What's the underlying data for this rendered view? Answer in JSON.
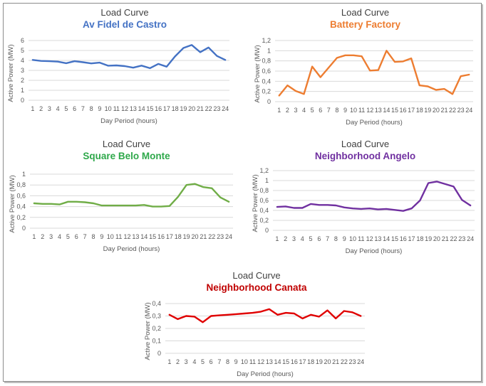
{
  "chart_data": [
    {
      "type": "line",
      "title": "Load Curve",
      "subtitle": "Av Fidel de Castro",
      "color": "#4472C4",
      "xlabel": "Day Period (hours)",
      "ylabel": "Active Power (MW)",
      "x": [
        1,
        2,
        3,
        4,
        5,
        6,
        7,
        8,
        9,
        10,
        11,
        12,
        13,
        14,
        15,
        16,
        17,
        18,
        19,
        20,
        21,
        22,
        23,
        24
      ],
      "ylim": [
        0,
        6
      ],
      "yticks": [
        "0",
        "1",
        "2",
        "3",
        "4",
        "5",
        "6"
      ],
      "grid": true,
      "series": [
        {
          "name": "Av Fidel de Castro",
          "values": [
            4.05,
            3.95,
            3.92,
            3.88,
            3.72,
            3.92,
            3.82,
            3.7,
            3.78,
            3.47,
            3.5,
            3.43,
            3.27,
            3.48,
            3.22,
            3.65,
            3.37,
            4.4,
            5.25,
            5.55,
            4.83,
            5.3,
            4.45,
            4.05
          ]
        }
      ]
    },
    {
      "type": "line",
      "title": "Load Curve",
      "subtitle": "Battery Factory",
      "color": "#ED7D31",
      "xlabel": "Day Period (hours)",
      "ylabel": "Active Power (MW)",
      "x": [
        1,
        2,
        3,
        4,
        5,
        6,
        7,
        8,
        9,
        10,
        11,
        12,
        13,
        14,
        15,
        16,
        17,
        18,
        19,
        20,
        21,
        22,
        23,
        24
      ],
      "ylim": [
        0,
        1.2
      ],
      "yticks": [
        "0",
        "0,2",
        "0,4",
        "0,6",
        "0,8",
        "1",
        "1,2"
      ],
      "grid": true,
      "series": [
        {
          "name": "Battery Factory",
          "values": [
            0.12,
            0.32,
            0.21,
            0.15,
            0.69,
            0.48,
            0.67,
            0.86,
            0.91,
            0.91,
            0.89,
            0.61,
            0.62,
            1.0,
            0.78,
            0.79,
            0.85,
            0.32,
            0.3,
            0.23,
            0.25,
            0.15,
            0.5,
            0.53
          ]
        }
      ]
    },
    {
      "type": "line",
      "title": "Load Curve",
      "subtitle": "Square Belo Monte",
      "color": "#70AD47",
      "subtitle_color": "#2EA84A",
      "xlabel": "Day Period (hours)",
      "ylabel": "Active Power (MW)",
      "x": [
        1,
        2,
        3,
        4,
        5,
        6,
        7,
        8,
        9,
        10,
        11,
        12,
        13,
        14,
        15,
        16,
        17,
        18,
        19,
        20,
        21,
        22,
        23,
        24
      ],
      "ylim": [
        0,
        1
      ],
      "yticks": [
        "0",
        "0,2",
        "0,4",
        "0,6",
        "0,8",
        "1"
      ],
      "grid": true,
      "series": [
        {
          "name": "Square Belo Monte",
          "values": [
            0.46,
            0.45,
            0.45,
            0.44,
            0.49,
            0.49,
            0.48,
            0.46,
            0.42,
            0.42,
            0.42,
            0.42,
            0.42,
            0.43,
            0.4,
            0.4,
            0.41,
            0.58,
            0.8,
            0.82,
            0.76,
            0.74,
            0.57,
            0.49
          ]
        }
      ]
    },
    {
      "type": "line",
      "title": "Load Curve",
      "subtitle": "Neighborhood Angelo",
      "color": "#7030A0",
      "xlabel": "Day Period (hours)",
      "ylabel": "Active Power (MW)",
      "x": [
        1,
        2,
        3,
        4,
        5,
        6,
        7,
        8,
        9,
        10,
        11,
        12,
        13,
        14,
        15,
        16,
        17,
        18,
        19,
        20,
        21,
        22,
        23,
        24
      ],
      "ylim": [
        0,
        1.2
      ],
      "yticks": [
        "0",
        "0,2",
        "0,4",
        "0,6",
        "0,8",
        "1",
        "1,2"
      ],
      "grid": true,
      "series": [
        {
          "name": "Neighborhood Angelo",
          "values": [
            0.47,
            0.48,
            0.45,
            0.45,
            0.53,
            0.51,
            0.51,
            0.5,
            0.46,
            0.44,
            0.43,
            0.44,
            0.42,
            0.43,
            0.41,
            0.39,
            0.44,
            0.6,
            0.95,
            0.98,
            0.93,
            0.88,
            0.61,
            0.5
          ]
        }
      ]
    },
    {
      "type": "line",
      "title": "Load Curve",
      "subtitle": "Neighborhood Canata",
      "color": "#E00000",
      "subtitle_color": "#C00000",
      "xlabel": "Day Period (hours)",
      "ylabel": "Active Power (MW)",
      "x": [
        1,
        2,
        3,
        4,
        5,
        6,
        7,
        8,
        9,
        10,
        11,
        12,
        13,
        14,
        15,
        16,
        17,
        18,
        19,
        20,
        21,
        22,
        23,
        24
      ],
      "ylim": [
        0,
        0.4
      ],
      "yticks": [
        "0",
        "0,1",
        "0,2",
        "0,3",
        "0,4"
      ],
      "grid": true,
      "series": [
        {
          "name": "Neighborhood Canata",
          "values": [
            0.31,
            0.275,
            0.3,
            0.295,
            0.25,
            0.3,
            0.305,
            0.31,
            0.315,
            0.32,
            0.325,
            0.335,
            0.355,
            0.31,
            0.325,
            0.32,
            0.28,
            0.31,
            0.295,
            0.345,
            0.28,
            0.34,
            0.33,
            0.3
          ]
        }
      ]
    }
  ]
}
